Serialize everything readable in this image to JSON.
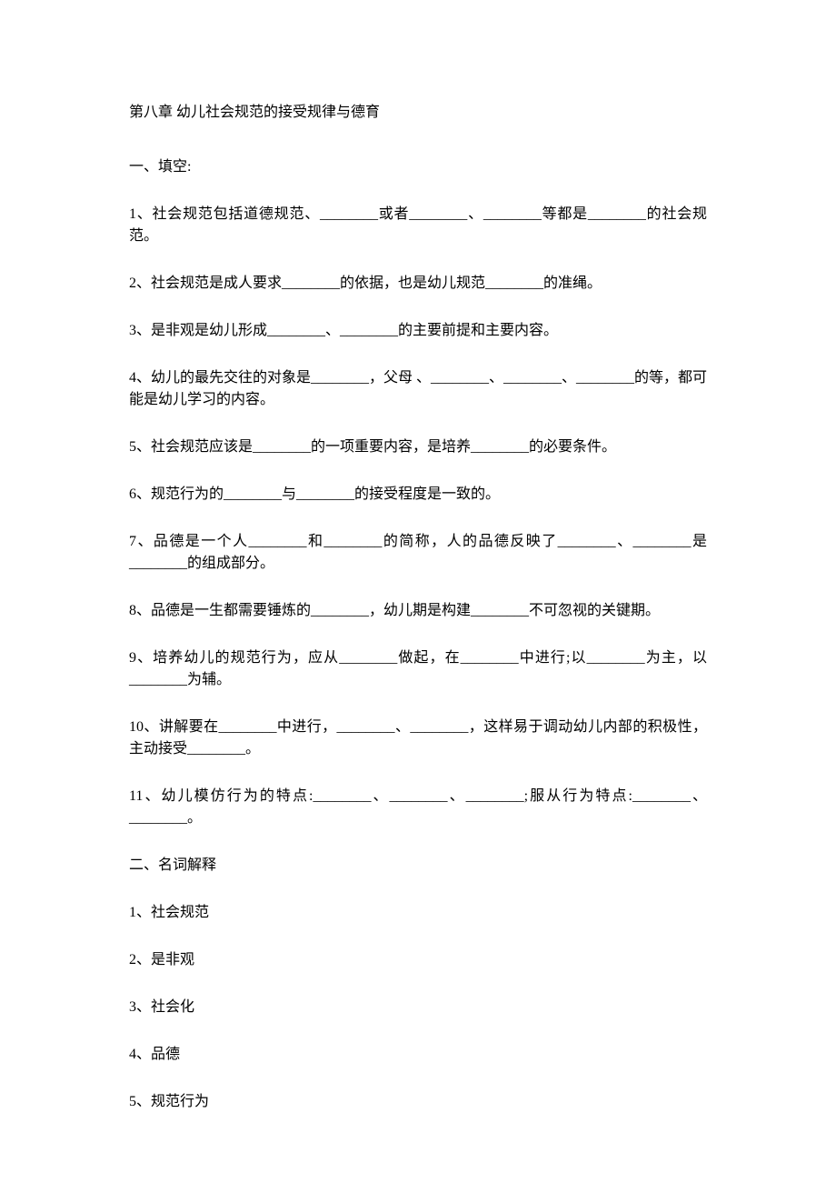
{
  "title": "第八章 幼儿社会规范的接受规律与德育",
  "section1": {
    "heading": "一、填空:",
    "q1": "1、社会规范包括道德规范、________或者________、________等都是________的社会规范。",
    "q2": "2、社会规范是成人要求________的依据，也是幼儿规范________的准绳。",
    "q3": "3、是非观是幼儿形成________、________的主要前提和主要内容。",
    "q4": "4、幼儿的最先交往的对象是________，父母 、________、________、________的等，都可能是幼儿学习的内容。",
    "q5": "5、社会规范应该是________的一项重要内容，是培养________的必要条件。",
    "q6": "6、规范行为的________与________的接受程度是一致的。",
    "q7": "7、品德是一个人________和________的简称，人的品德反映了________、________是________的组成部分。",
    "q8": "8、品德是一生都需要锤炼的________，幼儿期是构建________不可忽视的关键期。",
    "q9": "9、培养幼儿的规范行为，应从________做起，在________中进行;以________为主，以________为辅。",
    "q10": "10、讲解要在________中进行，________、________，这样易于调动幼儿内部的积极性，主动接受________。",
    "q11": "11、幼儿模仿行为的特点:________、________、________;服从行为特点:________、________。"
  },
  "section2": {
    "heading": "二、名词解释",
    "t1": "1、社会规范",
    "t2": "2、是非观",
    "t3": "3、社会化",
    "t4": "4、品德",
    "t5": "5、规范行为"
  }
}
